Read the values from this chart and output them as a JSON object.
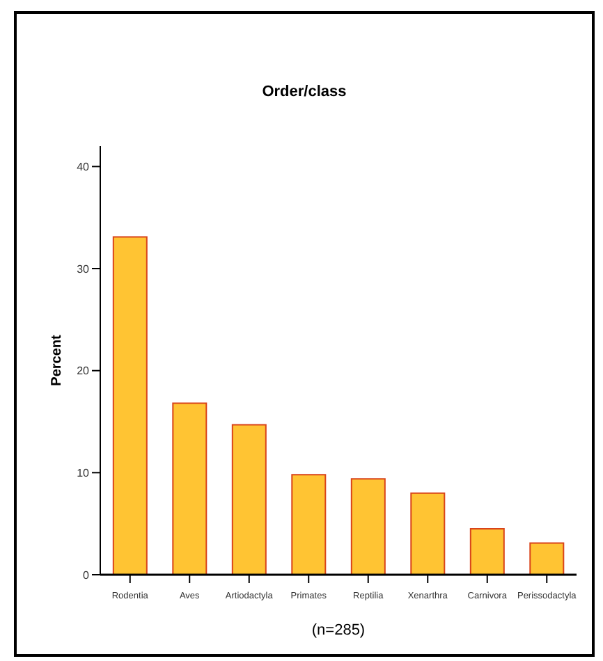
{
  "chart_data": {
    "type": "bar",
    "title": "Order/class",
    "xlabel": "(n=285)",
    "ylabel": "Percent",
    "categories": [
      "Rodentia",
      "Aves",
      "Artiodactyla",
      "Primates",
      "Reptilia",
      "Xenarthra",
      "Carnivora",
      "Perissodactyla"
    ],
    "values": [
      33.1,
      16.8,
      14.7,
      9.8,
      9.4,
      8.0,
      4.5,
      3.1
    ],
    "color": "#ffc433",
    "ylim": [
      0,
      42
    ],
    "yticks": [
      0,
      10,
      20,
      30,
      40
    ],
    "grid": false
  }
}
